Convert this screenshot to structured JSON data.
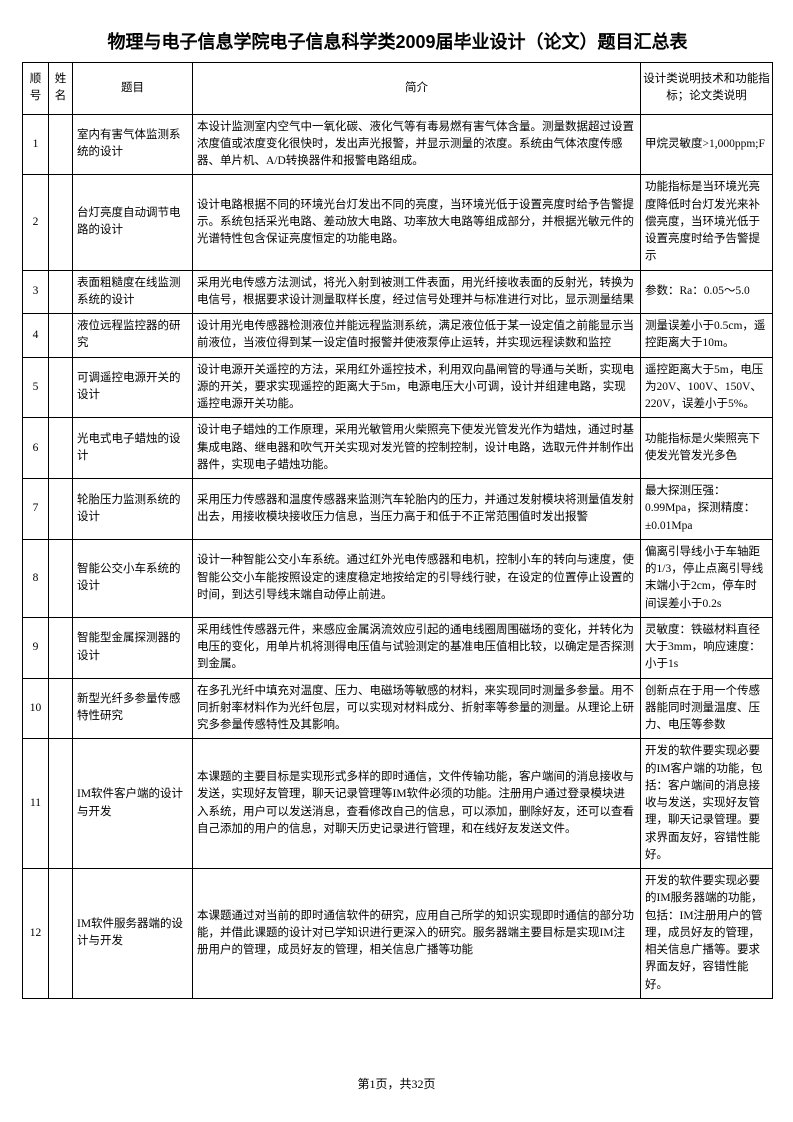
{
  "title": "物理与电子信息学院电子信息科学类2009届毕业设计（论文）题目汇总表",
  "headers": {
    "idx": "顺号",
    "name": "姓名",
    "topic": "题目",
    "intro": "简介",
    "spec": "设计类说明技术和功能指标；论文类说明"
  },
  "rows": [
    {
      "idx": "1",
      "name": "",
      "topic": "室内有害气体监测系统的设计",
      "intro": "本设计监测室内空气中一氧化碳、液化气等有毒易燃有害气体含量。测量数据超过设置浓度值或浓度变化很快时，发出声光报警，并显示测量的浓度。系统由气体浓度传感器、单片机、A/D转换器件和报警电路组成。",
      "spec": "甲烷灵敏度>1,000ppm;F"
    },
    {
      "idx": "2",
      "name": "",
      "topic": "台灯亮度自动调节电路的设计",
      "intro": "设计电路根据不同的环境光台灯发出不同的亮度，当环境光低于设置亮度时给予告警提示。系统包括采光电路、差动放大电路、功率放大电路等组成部分，并根据光敏元件的光谱特性包含保证亮度恒定的功能电路。",
      "spec": "功能指标是当环境光亮度降低时台灯发光来补偿亮度，当环境光低于设置亮度时给予告警提示"
    },
    {
      "idx": "3",
      "name": "",
      "topic": "表面粗糙度在线监测系统的设计",
      "intro": "采用光电传感方法测试，将光入射到被测工件表面，用光纤接收表面的反射光，转换为电信号，根据要求设计测量取样长度，经过信号处理并与标准进行对比，显示测量结果",
      "spec": "参数：Ra：0.05～5.0"
    },
    {
      "idx": "4",
      "name": "",
      "topic": "液位远程监控器的研究",
      "intro": "设计用光电传感器检测液位并能远程监测系统，满足液位低于某一设定值之前能显示当前液位，当液位得到某一设定值时报警并使液泵停止运转，并实现远程读数和监控",
      "spec": "测量误差小于0.5cm，遥控距离大于10m。"
    },
    {
      "idx": "5",
      "name": "",
      "topic": "可调遥控电源开关的设计",
      "intro": "设计电源开关遥控的方法，采用红外遥控技术，利用双向晶闸管的导通与关断，实现电源的开关，要求实现遥控的距离大于5m，电源电压大小可调，设计并组建电路，实现遥控电源开关功能。",
      "spec": "遥控距离大于5m，电压为20V、100V、150V、220V，误差小于5%。"
    },
    {
      "idx": "6",
      "name": "",
      "topic": "光电式电子蜡烛的设计",
      "intro": "设计电子蜡烛的工作原理，采用光敏管用火柴照亮下使发光管发光作为蜡烛，通过时基集成电路、继电器和吹气开关实现对发光管的控制控制，设计电路，选取元件并制作出器件，实现电子蜡烛功能。",
      "spec": "功能指标是火柴照亮下使发光管发光多色"
    },
    {
      "idx": "7",
      "name": "",
      "topic": "轮胎压力监测系统的设计",
      "intro": "采用压力传感器和温度传感器来监测汽车轮胎内的压力，并通过发射模块将测量值发射出去，用接收模块接收压力信息，当压力高于和低于不正常范围值时发出报警",
      "spec": "最大探测压强：0.99Mpa，探测精度：±0.01Mpa"
    },
    {
      "idx": "8",
      "name": "",
      "topic": "智能公交小车系统的设计",
      "intro": "设计一种智能公交小车系统。通过红外光电传感器和电机，控制小车的转向与速度，使智能公交小车能按照设定的速度稳定地按给定的引导线行驶，在设定的位置停止设置的时间，到达引导线末端自动停止前进。",
      "spec": "偏离引导线小于车轴距的1/3，停止点离引导线末端小于2cm，停车时间误差小于0.2s"
    },
    {
      "idx": "9",
      "name": "",
      "topic": "智能型金属探测器的设计",
      "intro": "采用线性传感器元件，来感应金属涡流效应引起的通电线圈周围磁场的变化，并转化为电压的变化，用单片机将测得电压值与试验测定的基准电压值相比较，以确定是否探测到金属。",
      "spec": "灵敏度：铁磁材料直径大于3mm，响应速度：小于1s"
    },
    {
      "idx": "10",
      "name": "",
      "topic": "新型光纤多参量传感特性研究",
      "intro": "在多孔光纤中填充对温度、压力、电磁场等敏感的材料，来实现同时测量多参量。用不同折射率材料作为光纤包层，可以实现对材料成分、折射率等参量的测量。从理论上研究多参量传感特性及其影响。",
      "spec": "创新点在于用一个传感器能同时测量温度、压力、电压等参数"
    },
    {
      "idx": "11",
      "name": "",
      "topic": "IM软件客户端的设计与开发",
      "intro": "本课题的主要目标是实现形式多样的即时通信，文件传输功能，客户端间的消息接收与发送，实现好友管理，聊天记录管理等IM软件必须的功能。注册用户通过登录模块进入系统，用户可以发送消息，查看修改自己的信息，可以添加，删除好友，还可以查看自己添加的用户的信息，对聊天历史记录进行管理，和在线好友发送文件。",
      "spec": "开发的软件要实现必要的IM客户端的功能，包括：客户端间的消息接收与发送，实现好友管理，聊天记录管理。要求界面友好，容错性能好。"
    },
    {
      "idx": "12",
      "name": "",
      "topic": "IM软件服务器端的设计与开发",
      "intro": "本课题通过对当前的即时通信软件的研究，应用自己所学的知识实现即时通信的部分功能，并借此课题的设计对已学知识进行更深入的研究。服务器端主要目标是实现IM注册用户的管理，成员好友的管理，相关信息广播等功能",
      "spec": "开发的软件要实现必要的IM服务器端的功能，包括：IM注册用户的管理，成员好友的管理，相关信息广播等。要求界面友好，容错性能好。"
    }
  ],
  "footer": "第1页，共32页"
}
